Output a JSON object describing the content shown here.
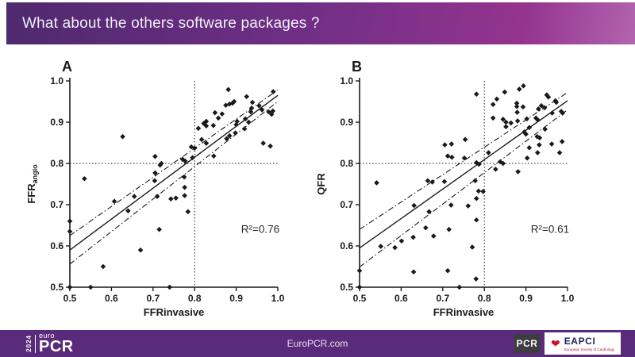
{
  "header": {
    "title": "What about the others software packages ?"
  },
  "footer": {
    "center_text": "EuroPCR.com",
    "logo": {
      "year": "2024",
      "euro": "euro",
      "pcr": "PCR"
    },
    "pcr_badge": "PCR",
    "eapci": {
      "name": "EAPCI",
      "tagline": "European Society of Cardiology"
    }
  },
  "colors": {
    "header_start": "#4e2a6e",
    "header_mid": "#6e2e84",
    "header_end": "#94348f",
    "header_hi": "#b264ae",
    "footer_bg": "#5b2b7b",
    "ink": "#1a1a1a",
    "pcr_badge_bg": "#3d3d40",
    "eapci_navy": "#24245c",
    "eapci_red": "#c8102e",
    "title_text": "#f3eef8"
  },
  "chart_data": [
    {
      "type": "scatter",
      "panel_label": "A",
      "xlabel": "FFRinvasive",
      "ylabel": "FFR",
      "ylabel_sub": "angio",
      "xlim": [
        0.5,
        1.0
      ],
      "ylim": [
        0.5,
        1.0
      ],
      "xticks": [
        0.5,
        0.6,
        0.7,
        0.8,
        0.9,
        1.0
      ],
      "yticks": [
        0.5,
        0.6,
        0.7,
        0.8,
        0.9,
        1.0
      ],
      "grid": false,
      "reference_lines": {
        "x": 0.8,
        "y": 0.8,
        "style": "dotted"
      },
      "regression": {
        "line": [
          [
            0.5,
            0.59
          ],
          [
            1.0,
            0.965
          ]
        ],
        "ci_upper": [
          [
            0.5,
            0.625
          ],
          [
            1.0,
            0.978
          ]
        ],
        "ci_lower": [
          [
            0.5,
            0.556
          ],
          [
            1.0,
            0.95
          ]
        ]
      },
      "annotation": {
        "text": "R²=0.76",
        "x": 0.958,
        "y": 0.632
      },
      "points": [
        [
          0.5,
          0.5
        ],
        [
          0.55,
          0.5
        ],
        [
          0.74,
          0.5
        ],
        [
          0.58,
          0.55
        ],
        [
          0.67,
          0.59
        ],
        [
          0.5,
          0.635
        ],
        [
          0.5,
          0.66
        ],
        [
          0.715,
          0.64
        ],
        [
          0.607,
          0.708
        ],
        [
          0.655,
          0.72
        ],
        [
          0.64,
          0.685
        ],
        [
          0.71,
          0.72
        ],
        [
          0.743,
          0.714
        ],
        [
          0.755,
          0.716
        ],
        [
          0.776,
          0.722
        ],
        [
          0.784,
          0.683
        ],
        [
          0.776,
          0.742
        ],
        [
          0.775,
          0.767
        ],
        [
          0.704,
          0.758
        ],
        [
          0.705,
          0.777
        ],
        [
          0.705,
          0.817
        ],
        [
          0.717,
          0.796
        ],
        [
          0.535,
          0.763
        ],
        [
          0.627,
          0.865
        ],
        [
          0.72,
          0.8
        ],
        [
          0.771,
          0.81
        ],
        [
          0.777,
          0.806
        ],
        [
          0.795,
          0.814
        ],
        [
          0.8,
          0.837
        ],
        [
          0.792,
          0.84
        ],
        [
          0.817,
          0.858
        ],
        [
          0.828,
          0.849
        ],
        [
          0.846,
          0.818
        ],
        [
          0.822,
          0.897
        ],
        [
          0.809,
          0.885
        ],
        [
          0.828,
          0.902
        ],
        [
          0.828,
          0.891
        ],
        [
          0.845,
          0.892
        ],
        [
          0.849,
          0.923
        ],
        [
          0.857,
          0.91
        ],
        [
          0.866,
          0.92
        ],
        [
          0.875,
          0.941
        ],
        [
          0.884,
          0.944
        ],
        [
          0.891,
          0.946
        ],
        [
          0.881,
          0.979
        ],
        [
          0.895,
          0.95
        ],
        [
          0.877,
          0.86
        ],
        [
          0.884,
          0.867
        ],
        [
          0.898,
          0.874
        ],
        [
          0.9,
          0.894
        ],
        [
          0.902,
          0.902
        ],
        [
          0.92,
          0.884
        ],
        [
          0.922,
          0.908
        ],
        [
          0.93,
          0.9
        ],
        [
          0.925,
          0.962
        ],
        [
          0.935,
          0.925
        ],
        [
          0.937,
          0.934
        ],
        [
          0.939,
          0.948
        ],
        [
          0.955,
          0.94
        ],
        [
          0.962,
          0.93
        ],
        [
          0.965,
          0.849
        ],
        [
          0.978,
          0.925
        ],
        [
          0.982,
          0.842
        ],
        [
          0.985,
          0.919
        ],
        [
          0.988,
          0.927
        ],
        [
          0.989,
          0.974
        ]
      ]
    },
    {
      "type": "scatter",
      "panel_label": "B",
      "xlabel": "FFRinvasive",
      "ylabel": "QFR",
      "ylabel_sub": "",
      "xlim": [
        0.5,
        1.0
      ],
      "ylim": [
        0.5,
        1.0
      ],
      "xticks": [
        0.5,
        0.6,
        0.7,
        0.8,
        0.9,
        1.0
      ],
      "yticks": [
        0.5,
        0.6,
        0.7,
        0.8,
        0.9,
        1.0
      ],
      "grid": false,
      "reference_lines": {
        "x": 0.8,
        "y": 0.8,
        "style": "dotted"
      },
      "regression": {
        "line": [
          [
            0.5,
            0.595
          ],
          [
            1.0,
            0.952
          ]
        ],
        "ci_upper": [
          [
            0.5,
            0.64
          ],
          [
            1.0,
            0.972
          ]
        ],
        "ci_lower": [
          [
            0.5,
            0.549
          ],
          [
            1.0,
            0.93
          ]
        ]
      },
      "annotation": {
        "text": "R²=0.61",
        "x": 0.958,
        "y": 0.632
      },
      "points": [
        [
          0.5,
          0.5
        ],
        [
          0.5,
          0.54
        ],
        [
          0.74,
          0.5
        ],
        [
          0.63,
          0.537
        ],
        [
          0.712,
          0.54
        ],
        [
          0.78,
          0.52
        ],
        [
          0.551,
          0.599
        ],
        [
          0.771,
          0.597
        ],
        [
          0.585,
          0.596
        ],
        [
          0.601,
          0.612
        ],
        [
          0.629,
          0.621
        ],
        [
          0.659,
          0.644
        ],
        [
          0.678,
          0.624
        ],
        [
          0.715,
          0.64
        ],
        [
          0.631,
          0.698
        ],
        [
          0.667,
          0.683
        ],
        [
          0.72,
          0.699
        ],
        [
          0.761,
          0.697
        ],
        [
          0.781,
          0.663
        ],
        [
          0.781,
          0.715
        ],
        [
          0.786,
          0.733
        ],
        [
          0.797,
          0.732
        ],
        [
          0.664,
          0.758
        ],
        [
          0.675,
          0.755
        ],
        [
          0.704,
          0.756
        ],
        [
          0.778,
          0.758
        ],
        [
          0.541,
          0.753
        ],
        [
          0.712,
          0.818
        ],
        [
          0.722,
          0.815
        ],
        [
          0.752,
          0.813
        ],
        [
          0.705,
          0.845
        ],
        [
          0.721,
          0.847
        ],
        [
          0.754,
          0.858
        ],
        [
          0.781,
          0.802
        ],
        [
          0.787,
          0.798
        ],
        [
          0.81,
          0.826
        ],
        [
          0.838,
          0.804
        ],
        [
          0.845,
          0.8
        ],
        [
          0.827,
          0.786
        ],
        [
          0.881,
          0.78
        ],
        [
          0.903,
          0.813
        ],
        [
          0.928,
          0.826
        ],
        [
          0.981,
          0.826
        ],
        [
          0.908,
          0.838
        ],
        [
          0.932,
          0.845
        ],
        [
          0.962,
          0.847
        ],
        [
          0.987,
          0.853
        ],
        [
          0.927,
          0.865
        ],
        [
          0.933,
          0.862
        ],
        [
          0.896,
          0.876
        ],
        [
          0.9,
          0.871
        ],
        [
          0.864,
          0.898
        ],
        [
          0.845,
          0.907
        ],
        [
          0.852,
          0.889
        ],
        [
          0.88,
          0.903
        ],
        [
          0.878,
          0.946
        ],
        [
          0.878,
          0.938
        ],
        [
          0.893,
          0.937
        ],
        [
          0.879,
          0.924
        ],
        [
          0.902,
          0.908
        ],
        [
          0.908,
          0.887
        ],
        [
          0.924,
          0.91
        ],
        [
          0.928,
          0.906
        ],
        [
          0.93,
          0.932
        ],
        [
          0.937,
          0.94
        ],
        [
          0.945,
          0.935
        ],
        [
          0.946,
          0.883
        ],
        [
          0.95,
          0.966
        ],
        [
          0.954,
          0.961
        ],
        [
          0.971,
          0.952
        ],
        [
          0.973,
          0.948
        ],
        [
          0.963,
          0.922
        ],
        [
          0.985,
          0.926
        ],
        [
          0.988,
          0.922
        ],
        [
          0.781,
          0.968
        ],
        [
          0.83,
          0.956
        ],
        [
          0.849,
          0.973
        ],
        [
          0.884,
          0.98
        ],
        [
          0.894,
          0.988
        ],
        [
          0.821,
          0.943
        ],
        [
          0.821,
          0.91
        ],
        [
          0.852,
          0.9
        ]
      ]
    }
  ]
}
